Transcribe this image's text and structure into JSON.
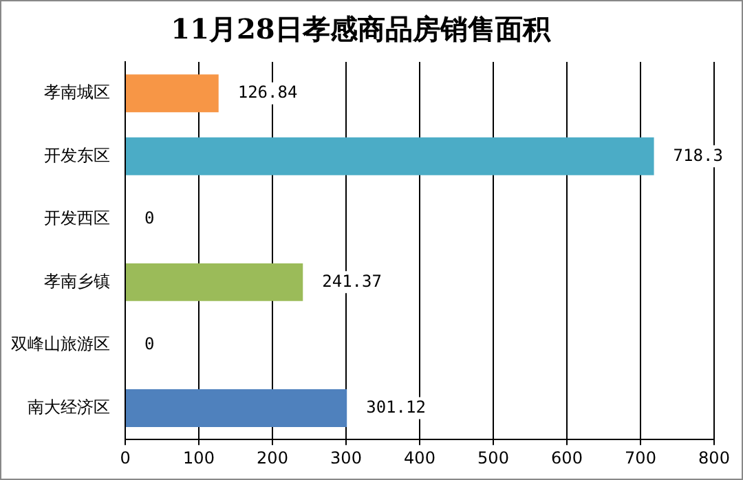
{
  "chart_data": {
    "type": "bar",
    "orientation": "horizontal",
    "title": "11月28日孝感商品房销售面积",
    "categories": [
      "孝南城区",
      "开发东区",
      "开发西区",
      "孝南乡镇",
      "双峰山旅游区",
      "南大经济区"
    ],
    "values": [
      126.84,
      718.3,
      0,
      241.37,
      0,
      301.12
    ],
    "colors": [
      "#f79646",
      "#4bacc6",
      "#c0504d",
      "#9bbb59",
      "#8064a2",
      "#4f81bd"
    ],
    "xlim": [
      0,
      800
    ],
    "xticks": [
      0,
      100,
      200,
      300,
      400,
      500,
      600,
      700,
      800
    ],
    "grid": "x",
    "data_labels": true,
    "legend": false
  }
}
